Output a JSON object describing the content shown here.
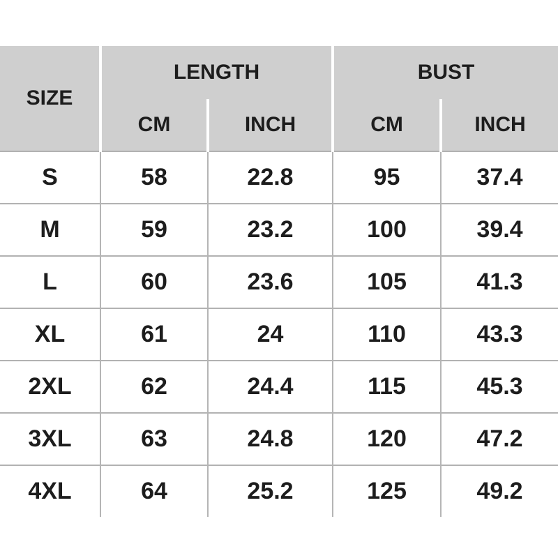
{
  "colors": {
    "header_bg": "#cfcfcf",
    "text": "#1d1d1d",
    "row_divider": "#b2b2b2",
    "column_divider": "#b5b5b5",
    "header_divider": "#ffffff",
    "page_bg": "#ffffff"
  },
  "chart_data": {
    "type": "table",
    "title": "",
    "header": {
      "size_label": "SIZE",
      "groups": [
        {
          "label": "LENGTH",
          "subcolumns": [
            "CM",
            "INCH"
          ]
        },
        {
          "label": "BUST",
          "subcolumns": [
            "CM",
            "INCH"
          ]
        }
      ]
    },
    "rows": [
      {
        "size": "S",
        "length_cm": "58",
        "length_inch": "22.8",
        "bust_cm": "95",
        "bust_inch": "37.4"
      },
      {
        "size": "M",
        "length_cm": "59",
        "length_inch": "23.2",
        "bust_cm": "100",
        "bust_inch": "39.4"
      },
      {
        "size": "L",
        "length_cm": "60",
        "length_inch": "23.6",
        "bust_cm": "105",
        "bust_inch": "41.3"
      },
      {
        "size": "XL",
        "length_cm": "61",
        "length_inch": "24",
        "bust_cm": "110",
        "bust_inch": "43.3"
      },
      {
        "size": "2XL",
        "length_cm": "62",
        "length_inch": "24.4",
        "bust_cm": "115",
        "bust_inch": "45.3"
      },
      {
        "size": "3XL",
        "length_cm": "63",
        "length_inch": "24.8",
        "bust_cm": "120",
        "bust_inch": "47.2"
      },
      {
        "size": "4XL",
        "length_cm": "64",
        "length_inch": "25.2",
        "bust_cm": "125",
        "bust_inch": "49.2"
      }
    ]
  }
}
